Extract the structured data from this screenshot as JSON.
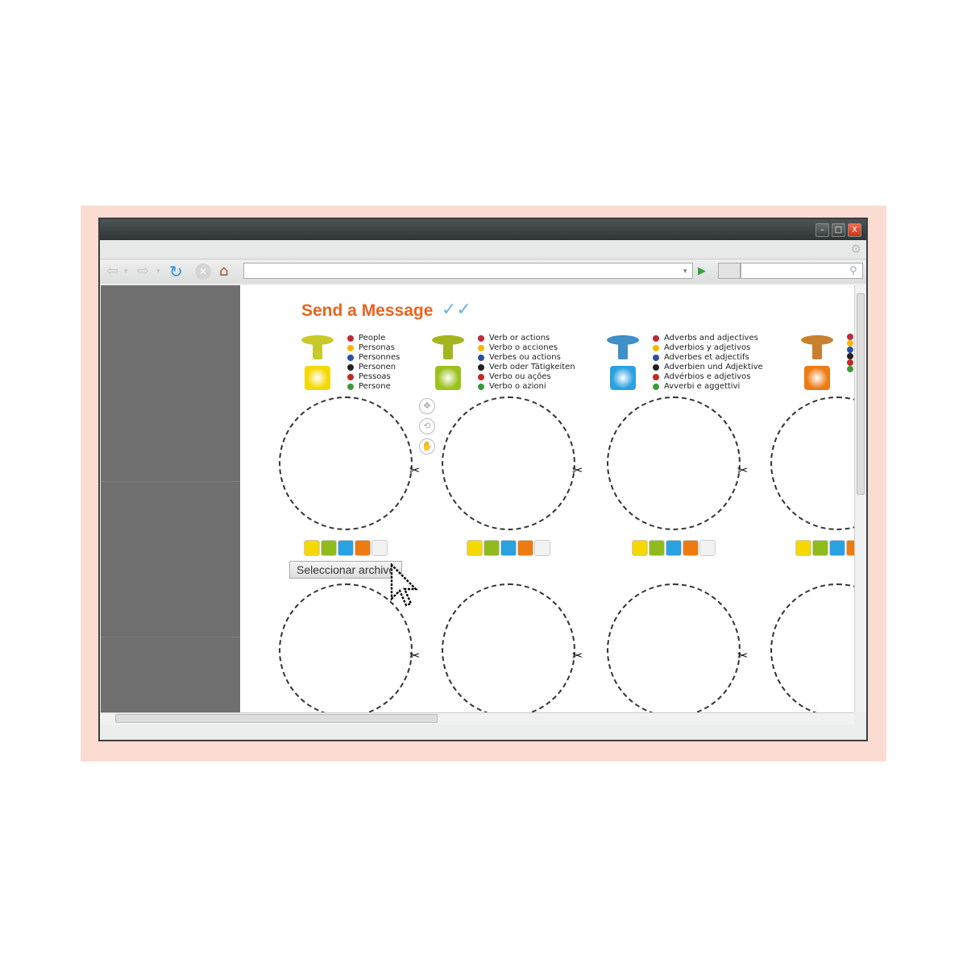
{
  "page": {
    "title": "Send a Message"
  },
  "window_controls": {
    "minimize": "–",
    "maximize": "□",
    "close": "X"
  },
  "icons": {
    "back": "back-arrow-icon",
    "forward": "forward-arrow-icon",
    "reload": "reload-icon",
    "stop": "stop-icon",
    "home": "home-icon",
    "go": "go-icon",
    "search": "search-icon",
    "gear": "gear-icon"
  },
  "columns": [
    {
      "color": "#f5d800",
      "peg": "#c9c92a",
      "labels": [
        "People",
        "Personas",
        "Personnes",
        "Personen",
        "Pessoas",
        "Persone"
      ]
    },
    {
      "color": "#9bc21c",
      "peg": "#a5b51f",
      "labels": [
        "Verb or actions",
        "Verbo o acciones",
        "Verbes ou actions",
        "Verb oder Tätigkeiten",
        "Verbo ou ações",
        "Verbo o azioni"
      ]
    },
    {
      "color": "#2aa1e0",
      "peg": "#3f8fc8",
      "labels": [
        "Adverbs and adjectives",
        "Adverbios y adjetivos",
        "Adverbes et adjectifs",
        "Adverbien und Adjektive",
        "Advérbios e adjetivos",
        "Avverbi e aggettivi"
      ]
    },
    {
      "color": "#ee7a12",
      "peg": "#c9802e",
      "labels": [
        "",
        "",
        "",
        "",
        "",
        ""
      ]
    }
  ],
  "flags": [
    "#c0283c",
    "#f2b800",
    "#2a4fa8",
    "#222222",
    "#c2291f",
    "#3a9a3a"
  ],
  "swatch_colors": [
    "#f5d800",
    "#8fbc1c",
    "#2aa1e0",
    "#ee7a12",
    "#f2f2f2"
  ],
  "file_button": {
    "label": "Seleccionar archivo"
  },
  "scissors": "✂"
}
